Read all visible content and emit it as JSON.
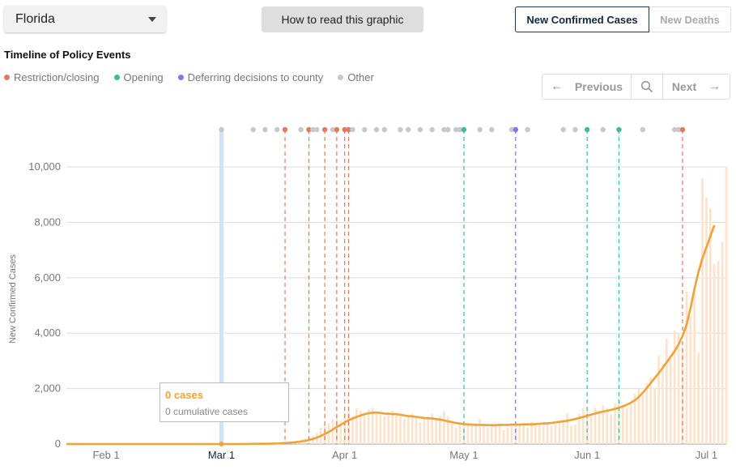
{
  "state_selector": {
    "value": "Florida"
  },
  "how_to_read_label": "How to read this graphic",
  "metric_toggle": {
    "active": "New Confirmed Cases",
    "inactive": "New Deaths"
  },
  "timeline_title": "Timeline of Policy Events",
  "legend": [
    {
      "label": "Restriction/closing",
      "color": "#e07b5f"
    },
    {
      "label": "Opening",
      "color": "#3dbb9a"
    },
    {
      "label": "Deferring decisions to county",
      "color": "#7a7af0"
    },
    {
      "label": "Other",
      "color": "#c8c8c8"
    }
  ],
  "nav": {
    "previous": "Previous",
    "next": "Next"
  },
  "tooltip": {
    "cases": "0 cases",
    "cumulative": "0 cumulative cases"
  },
  "chart_data": {
    "type": "bar+line",
    "ylabel": "New Confirmed Cases",
    "ylim": [
      0,
      11200
    ],
    "yticks": [
      0,
      2000,
      4000,
      6000,
      8000,
      10000
    ],
    "ytick_labels": [
      "0",
      "2,000",
      "4,000",
      "6,000",
      "8,000",
      "10,000"
    ],
    "x_start_date": "2020-01-22",
    "x_end_date": "2020-07-06",
    "xticks": [
      {
        "date": "2020-02-01",
        "label": "Feb 1"
      },
      {
        "date": "2020-03-01",
        "label": "Mar 1"
      },
      {
        "date": "2020-04-01",
        "label": "Apr 1"
      },
      {
        "date": "2020-05-01",
        "label": "May 1"
      },
      {
        "date": "2020-06-01",
        "label": "Jun 1"
      },
      {
        "date": "2020-07-01",
        "label": "Jul 1"
      }
    ],
    "highlight_date": "2020-03-01",
    "series": [
      {
        "kind": "daily-bars",
        "color": "#fde3cc",
        "start_date": "2020-03-01",
        "values": [
          0,
          1,
          0,
          1,
          2,
          3,
          4,
          5,
          6,
          8,
          10,
          15,
          20,
          28,
          32,
          45,
          60,
          70,
          80,
          120,
          150,
          200,
          250,
          300,
          400,
          600,
          700,
          750,
          900,
          1000,
          850,
          1100,
          1200,
          1000,
          1300,
          1200,
          1100,
          1250,
          1300,
          1100,
          1050,
          1000,
          1150,
          1200,
          1100,
          1000,
          900,
          1050,
          1100,
          950,
          800,
          900,
          1000,
          1100,
          900,
          1000,
          1200,
          1000,
          850,
          600,
          750,
          800,
          700,
          650,
          750,
          900,
          700,
          600,
          650,
          700,
          750,
          500,
          600,
          650,
          700,
          700,
          750,
          600,
          800,
          650,
          700,
          800,
          750,
          650,
          700,
          800,
          900,
          1100,
          650,
          700,
          1100,
          1300,
          1200,
          1000,
          1300,
          1200,
          1400,
          1300,
          1100,
          1450,
          1600,
          1400,
          1300,
          1500,
          1800,
          2000,
          1750,
          2200,
          2400,
          2000,
          3200,
          2900,
          3800,
          3200,
          4100,
          4000,
          3500,
          5500,
          4600,
          5500,
          3300,
          9600,
          8900,
          8500,
          6500,
          6600,
          7300,
          10000
        ]
      },
      {
        "kind": "rolling-average-line",
        "color": "#f0a23a",
        "start_date": "2020-03-01",
        "values": [
          0,
          0,
          0,
          1,
          1,
          2,
          3,
          4,
          5,
          6,
          8,
          10,
          13,
          17,
          21,
          28,
          36,
          45,
          55,
          70,
          90,
          115,
          150,
          180,
          230,
          290,
          360,
          440,
          520,
          620,
          690,
          780,
          860,
          920,
          980,
          1030,
          1080,
          1110,
          1130,
          1140,
          1120,
          1100,
          1090,
          1080,
          1080,
          1060,
          1030,
          1010,
          1000,
          980,
          960,
          940,
          930,
          920,
          900,
          880,
          850,
          820,
          790,
          760,
          740,
          720,
          710,
          700,
          690,
          690,
          690,
          680,
          680,
          680,
          690,
          690,
          690,
          700,
          700,
          700,
          710,
          710,
          710,
          720,
          730,
          740,
          750,
          760,
          780,
          800,
          820,
          840,
          870,
          900,
          940,
          980,
          1020,
          1060,
          1100,
          1140,
          1170,
          1200,
          1230,
          1270,
          1310,
          1360,
          1420,
          1490,
          1580,
          1700,
          1850,
          2020,
          2200,
          2380,
          2560,
          2750,
          2950,
          3150,
          3350,
          3600,
          3900,
          4300,
          4900,
          5600,
          6200,
          6700,
          7100,
          7500,
          7900
        ]
      }
    ],
    "policy_events": [
      {
        "date": "2020-03-01",
        "type": "other"
      },
      {
        "date": "2020-03-09",
        "type": "other"
      },
      {
        "date": "2020-03-12",
        "type": "other"
      },
      {
        "date": "2020-03-15",
        "type": "other"
      },
      {
        "date": "2020-03-17",
        "type": "restriction"
      },
      {
        "date": "2020-03-21",
        "type": "other"
      },
      {
        "date": "2020-03-23",
        "type": "restriction"
      },
      {
        "date": "2020-03-24",
        "type": "other"
      },
      {
        "date": "2020-03-25",
        "type": "other"
      },
      {
        "date": "2020-03-27",
        "type": "restriction"
      },
      {
        "date": "2020-03-29",
        "type": "other"
      },
      {
        "date": "2020-03-30",
        "type": "restriction"
      },
      {
        "date": "2020-04-01",
        "type": "restriction"
      },
      {
        "date": "2020-04-02",
        "type": "restriction"
      },
      {
        "date": "2020-04-03",
        "type": "other"
      },
      {
        "date": "2020-04-06",
        "type": "other"
      },
      {
        "date": "2020-04-09",
        "type": "other"
      },
      {
        "date": "2020-04-11",
        "type": "other"
      },
      {
        "date": "2020-04-15",
        "type": "other"
      },
      {
        "date": "2020-04-17",
        "type": "other"
      },
      {
        "date": "2020-04-20",
        "type": "other"
      },
      {
        "date": "2020-04-23",
        "type": "other"
      },
      {
        "date": "2020-04-26",
        "type": "other"
      },
      {
        "date": "2020-04-27",
        "type": "other"
      },
      {
        "date": "2020-04-29",
        "type": "other"
      },
      {
        "date": "2020-04-30",
        "type": "other"
      },
      {
        "date": "2020-05-01",
        "type": "opening"
      },
      {
        "date": "2020-05-05",
        "type": "other"
      },
      {
        "date": "2020-05-08",
        "type": "other"
      },
      {
        "date": "2020-05-13",
        "type": "other"
      },
      {
        "date": "2020-05-14",
        "type": "county"
      },
      {
        "date": "2020-05-17",
        "type": "other"
      },
      {
        "date": "2020-05-26",
        "type": "other"
      },
      {
        "date": "2020-05-29",
        "type": "other"
      },
      {
        "date": "2020-06-01",
        "type": "opening"
      },
      {
        "date": "2020-06-05",
        "type": "other"
      },
      {
        "date": "2020-06-09",
        "type": "opening"
      },
      {
        "date": "2020-06-15",
        "type": "other"
      },
      {
        "date": "2020-06-23",
        "type": "other"
      },
      {
        "date": "2020-06-24",
        "type": "other"
      },
      {
        "date": "2020-06-25",
        "type": "restriction"
      }
    ],
    "event_colors": {
      "restriction": "#e07b5f",
      "opening": "#3dbb9a",
      "county": "#7a7af0",
      "other": "#c8c8c8"
    },
    "dashed_event_types": [
      "restriction",
      "opening",
      "county"
    ]
  }
}
